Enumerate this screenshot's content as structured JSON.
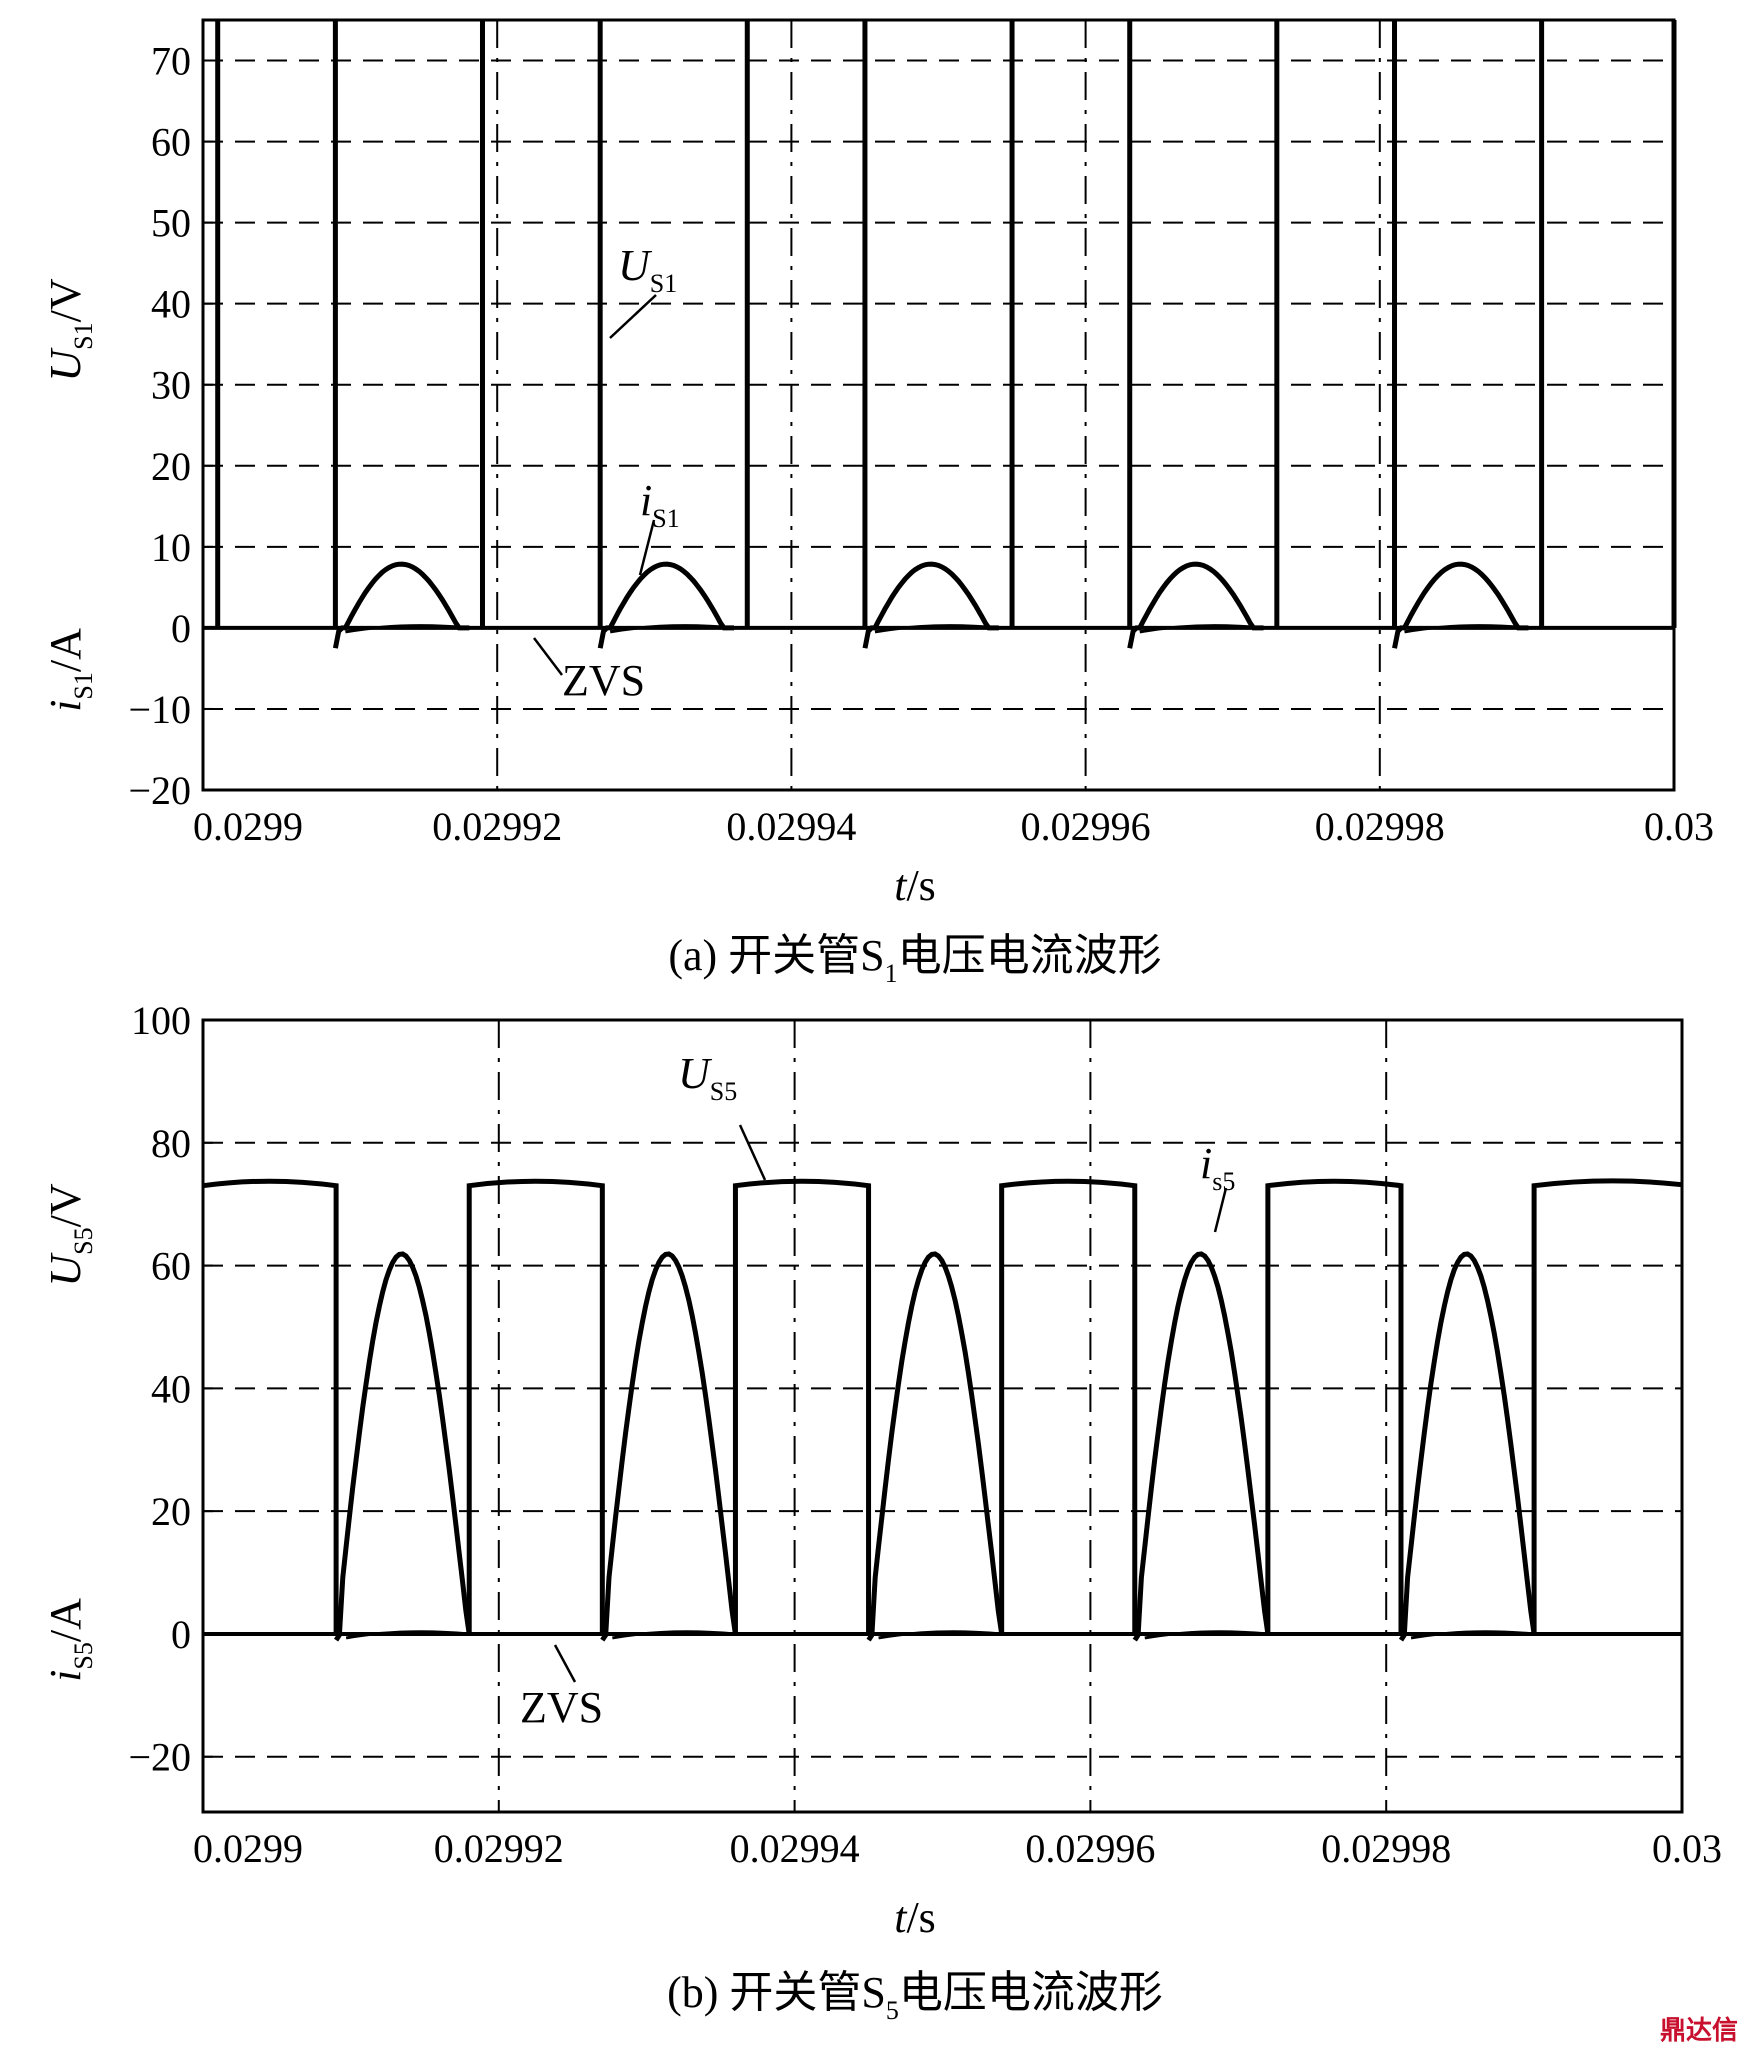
{
  "watermark": "鼎达信",
  "chart_data": [
    {
      "type": "line",
      "id": "a",
      "caption_prefix": "(a) 开关管S",
      "caption_sub": "1",
      "caption_suffix": "电压电流波形",
      "xlabel_var": "t",
      "xlabel_unit": "/s",
      "ylabel_upper_var": "U",
      "ylabel_upper_sub": "S1",
      "ylabel_upper_unit": "/V",
      "ylabel_lower_var": "i",
      "ylabel_lower_sub": "S1",
      "ylabel_lower_unit": "/A",
      "xlim": [
        0.0299,
        0.03
      ],
      "ylim": [
        -20,
        75
      ],
      "grid": true,
      "x_ticks": [
        0.0299,
        0.02992,
        0.02994,
        0.02996,
        0.02998,
        0.03
      ],
      "x_tick_labels": [
        "0.0299",
        "0.02992",
        "0.02994",
        "0.02996",
        "0.02998",
        "0.03"
      ],
      "y_ticks": [
        -20,
        -10,
        0,
        10,
        20,
        30,
        40,
        50,
        60,
        70
      ],
      "y_tick_labels": [
        "−20",
        "−10",
        "0",
        "10",
        "20",
        "30",
        "40",
        "50",
        "60",
        "70"
      ],
      "annotations": [
        {
          "var": "U",
          "sub": "S1",
          "italic_var": true
        },
        {
          "var": "i",
          "sub": "S1",
          "italic_var": true
        },
        {
          "var": "ZVS",
          "sub": "",
          "italic_var": false
        }
      ],
      "period": 1.82e-05,
      "series": [
        {
          "key": "voltage",
          "on_x": [
            [
              0.029901,
              0.029909
            ],
            [
              0.029919,
              0.029927
            ],
            [
              0.029937,
              0.029945
            ],
            [
              0.029955,
              0.029963
            ],
            [
              0.029973,
              0.029981
            ],
            [
              0.029991,
              0.03
            ]
          ],
          "high": 75,
          "low": 0
        },
        {
          "key": "current",
          "pulse_starts": [
            0.029909,
            0.029927,
            0.029945,
            0.029963,
            0.029981
          ],
          "pulse_width": 9.1e-06,
          "peak": 8.3,
          "dip": -2.5
        }
      ]
    },
    {
      "type": "line",
      "id": "b",
      "caption_prefix": "(b) 开关管S",
      "caption_sub": "5",
      "caption_suffix": "电压电流波形",
      "xlabel_var": "t",
      "xlabel_unit": "/s",
      "ylabel_upper_var": "U",
      "ylabel_upper_sub": "S5",
      "ylabel_upper_unit": "/V",
      "ylabel_lower_var": "i",
      "ylabel_lower_sub": "S5",
      "ylabel_lower_unit": "/A",
      "xlim": [
        0.0299,
        0.03
      ],
      "ylim": [
        -29,
        100
      ],
      "grid": true,
      "x_ticks": [
        0.0299,
        0.02992,
        0.02994,
        0.02996,
        0.02998,
        0.03
      ],
      "x_tick_labels": [
        "0.0299",
        "0.02992",
        "0.02994",
        "0.02996",
        "0.02998",
        "0.03"
      ],
      "y_ticks": [
        -20,
        0,
        20,
        40,
        60,
        80,
        100
      ],
      "y_tick_labels": [
        "−20",
        "0",
        "20",
        "40",
        "60",
        "80",
        "100"
      ],
      "annotations": [
        {
          "var": "U",
          "sub": "S5",
          "italic_var": true
        },
        {
          "var": "i",
          "sub": "s5",
          "italic_var": true
        },
        {
          "var": "ZVS",
          "sub": "",
          "italic_var": false
        }
      ],
      "series": [
        {
          "key": "voltage",
          "on_x": [
            [
              0.0299,
              0.029909
            ],
            [
              0.029918,
              0.029927
            ],
            [
              0.029936,
              0.029945
            ],
            [
              0.029954,
              0.029963
            ],
            [
              0.029972,
              0.029981
            ],
            [
              0.02999,
              0.03
            ]
          ],
          "high": 73.5,
          "low": 0
        },
        {
          "key": "current",
          "pulse_starts": [
            0.029909,
            0.029927,
            0.029945,
            0.029963,
            0.029981
          ],
          "pulse_width": 9e-06,
          "peak": 64.5,
          "dip": -1
        }
      ]
    }
  ]
}
